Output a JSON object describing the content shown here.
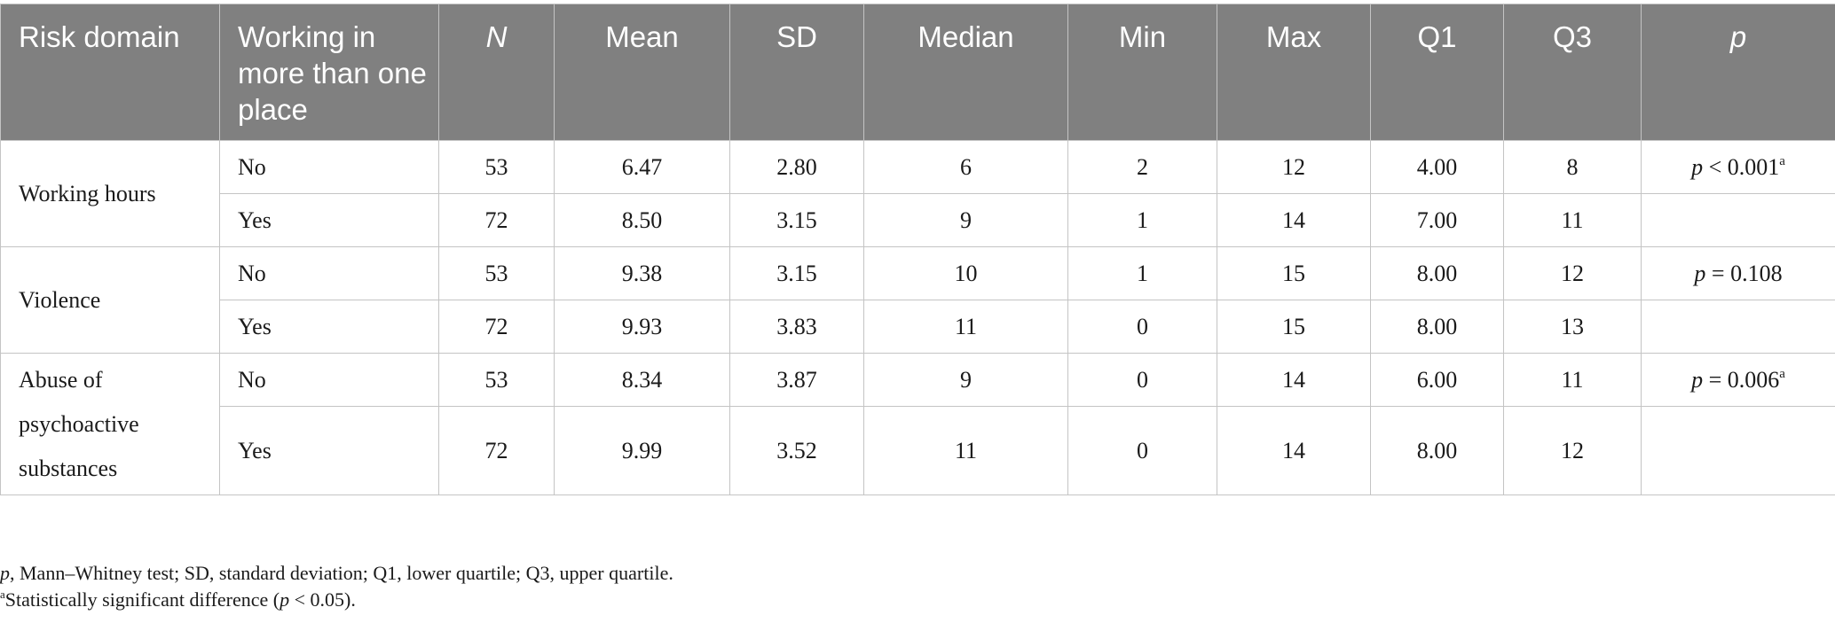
{
  "table": {
    "headers": {
      "risk_domain": "Risk domain",
      "working_more": "Working in more than one place",
      "n": "N",
      "mean": "Mean",
      "sd": "SD",
      "median": "Median",
      "min": "Min",
      "max": "Max",
      "q1": "Q1",
      "q3": "Q3",
      "p": "p"
    },
    "groups": [
      {
        "domain": "Working hours",
        "p_prefix": "p",
        "p_value": " < 0.001",
        "p_sup": "a",
        "rows": [
          {
            "working": "No",
            "n": "53",
            "mean": "6.47",
            "sd": "2.80",
            "median": "6",
            "min": "2",
            "max": "12",
            "q1": "4.00",
            "q3": "8"
          },
          {
            "working": "Yes",
            "n": "72",
            "mean": "8.50",
            "sd": "3.15",
            "median": "9",
            "min": "1",
            "max": "14",
            "q1": "7.00",
            "q3": "11"
          }
        ]
      },
      {
        "domain": "Violence",
        "p_prefix": "p",
        "p_value": " = 0.108",
        "p_sup": "",
        "rows": [
          {
            "working": "No",
            "n": "53",
            "mean": "9.38",
            "sd": "3.15",
            "median": "10",
            "min": "1",
            "max": "15",
            "q1": "8.00",
            "q3": "12"
          },
          {
            "working": "Yes",
            "n": "72",
            "mean": "9.93",
            "sd": "3.83",
            "median": "11",
            "min": "0",
            "max": "15",
            "q1": "8.00",
            "q3": "13"
          }
        ]
      },
      {
        "domain": "Abuse of psychoactive substances",
        "p_prefix": "p",
        "p_value": " = 0.006",
        "p_sup": "a",
        "rows": [
          {
            "working": "No",
            "n": "53",
            "mean": "8.34",
            "sd": "3.87",
            "median": "9",
            "min": "0",
            "max": "14",
            "q1": "6.00",
            "q3": "11"
          },
          {
            "working": "Yes",
            "n": "72",
            "mean": "9.99",
            "sd": "3.52",
            "median": "11",
            "min": "0",
            "max": "14",
            "q1": "8.00",
            "q3": "12"
          }
        ]
      }
    ]
  },
  "notes": {
    "line1_italic": "p",
    "line1_rest": ", Mann–Whitney test; SD, standard deviation; Q1, lower quartile; Q3, upper quartile.",
    "line2_sup": "a",
    "line2_text": "Statistically significant difference (",
    "line2_italic": "p",
    "line2_tail": " < 0.05)."
  }
}
